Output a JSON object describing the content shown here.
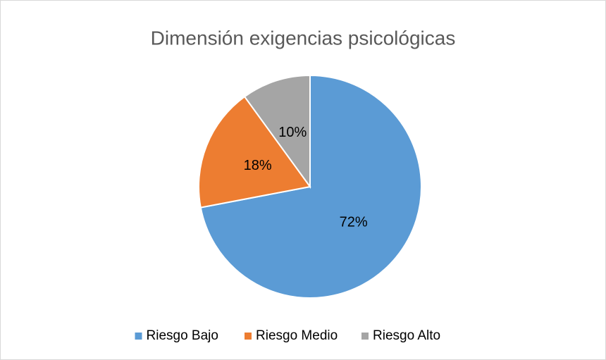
{
  "chart_data": {
    "type": "pie",
    "title": "Dimensión exigencias psicológicas",
    "categories": [
      "Riesgo Bajo",
      "Riesgo Medio",
      "Riesgo Alto"
    ],
    "values": [
      72,
      18,
      10
    ],
    "value_labels": [
      "72%",
      "18%",
      "10%"
    ],
    "colors": [
      "#5b9bd5",
      "#ed7d31",
      "#a5a5a5"
    ],
    "legend": "bottom"
  }
}
